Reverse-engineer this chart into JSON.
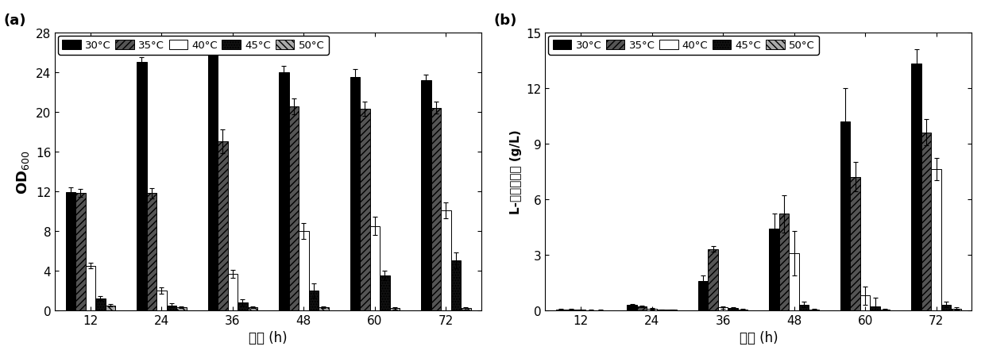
{
  "time_points": [
    12,
    24,
    36,
    48,
    60,
    72
  ],
  "panel_a": {
    "ylabel": "OD$_{600}$",
    "xlabel": "时间 (h)",
    "ylim": [
      0,
      28
    ],
    "yticks": [
      0,
      4,
      8,
      12,
      16,
      20,
      24,
      28
    ],
    "values": {
      "30": [
        11.9,
        25.0,
        26.1,
        24.0,
        23.5,
        23.2
      ],
      "35": [
        11.8,
        11.8,
        17.0,
        20.5,
        20.3,
        20.4
      ],
      "40": [
        4.5,
        2.0,
        3.7,
        8.0,
        8.5,
        10.1
      ],
      "45": [
        1.2,
        0.5,
        0.8,
        2.0,
        3.5,
        5.0
      ],
      "50": [
        0.5,
        0.3,
        0.3,
        0.3,
        0.2,
        0.2
      ]
    },
    "errors": {
      "30": [
        0.5,
        0.5,
        0.5,
        0.6,
        0.8,
        0.5
      ],
      "35": [
        0.4,
        0.5,
        1.2,
        0.8,
        0.7,
        0.6
      ],
      "40": [
        0.3,
        0.3,
        0.4,
        0.8,
        0.9,
        0.8
      ],
      "45": [
        0.2,
        0.2,
        0.3,
        0.7,
        0.5,
        0.8
      ],
      "50": [
        0.1,
        0.1,
        0.1,
        0.1,
        0.1,
        0.1
      ]
    }
  },
  "panel_b": {
    "ylabel": "L-亮氨酸产量 (g/L)",
    "xlabel": "时间 (h)",
    "ylim": [
      0,
      15
    ],
    "yticks": [
      0,
      3,
      6,
      9,
      12,
      15
    ],
    "values": {
      "30": [
        0.05,
        0.3,
        1.6,
        4.4,
        10.2,
        13.3
      ],
      "35": [
        0.05,
        0.2,
        3.3,
        5.2,
        7.2,
        9.6
      ],
      "40": [
        0.02,
        0.08,
        0.15,
        3.1,
        0.8,
        7.6
      ],
      "45": [
        0.01,
        0.04,
        0.12,
        0.3,
        0.2,
        0.3
      ],
      "50": [
        0.01,
        0.02,
        0.05,
        0.05,
        0.05,
        0.1
      ]
    },
    "errors": {
      "30": [
        0.02,
        0.05,
        0.3,
        0.8,
        1.8,
        0.8
      ],
      "35": [
        0.02,
        0.05,
        0.15,
        1.0,
        0.8,
        0.7
      ],
      "40": [
        0.02,
        0.03,
        0.05,
        1.2,
        0.5,
        0.6
      ],
      "45": [
        0.01,
        0.02,
        0.05,
        0.15,
        0.5,
        0.15
      ],
      "50": [
        0.01,
        0.01,
        0.02,
        0.02,
        0.02,
        0.05
      ]
    }
  },
  "temp_keys": [
    "30",
    "35",
    "40",
    "45",
    "50"
  ],
  "legend_labels": [
    "30°C",
    "35°C",
    "40°C",
    "45°C",
    "50°C"
  ],
  "bar_facecolors": [
    "#000000",
    "#555555",
    "#ffffff",
    "#111111",
    "#aaaaaa"
  ],
  "bar_hatches": [
    null,
    "////",
    "=====",
    ".....",
    "\\\\\\\\"
  ],
  "bar_width": 0.14,
  "title_a": "(a)",
  "title_b": "(b)"
}
